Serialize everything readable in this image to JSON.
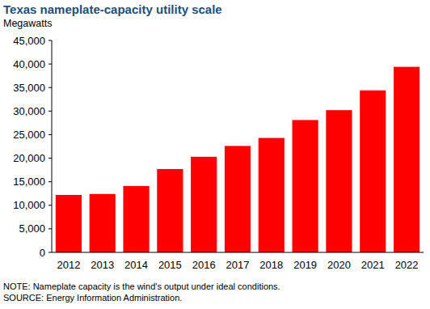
{
  "chart_data": {
    "type": "bar",
    "title": "Texas nameplate-capacity utility scale",
    "subtitle": "Megawatts",
    "notes": [
      "NOTE:  Nameplate capacity is the wind's output under ideal conditions.",
      "SOURCE: Energy Information Administration."
    ],
    "categories": [
      "2012",
      "2013",
      "2014",
      "2015",
      "2016",
      "2017",
      "2018",
      "2019",
      "2020",
      "2021",
      "2022"
    ],
    "values": [
      12200,
      12400,
      14100,
      17700,
      20300,
      22600,
      24300,
      28100,
      30200,
      34400,
      39400
    ],
    "color": "#ff0000",
    "ylim": [
      0,
      45000
    ],
    "yticks": [
      0,
      {
        "value": 5000,
        "label": "5,000"
      },
      {
        "value": 10000,
        "label": "10,000"
      },
      {
        "value": 15000,
        "label": "15,000"
      },
      {
        "value": 20000,
        "label": "20,000"
      },
      {
        "value": 25000,
        "label": "25,000"
      },
      {
        "value": 30000,
        "label": "30,000"
      },
      {
        "value": 35000,
        "label": "35,000"
      },
      {
        "value": 40000,
        "label": "40,000"
      },
      {
        "value": 45000,
        "label": "45,000"
      }
    ],
    "grid": false
  }
}
